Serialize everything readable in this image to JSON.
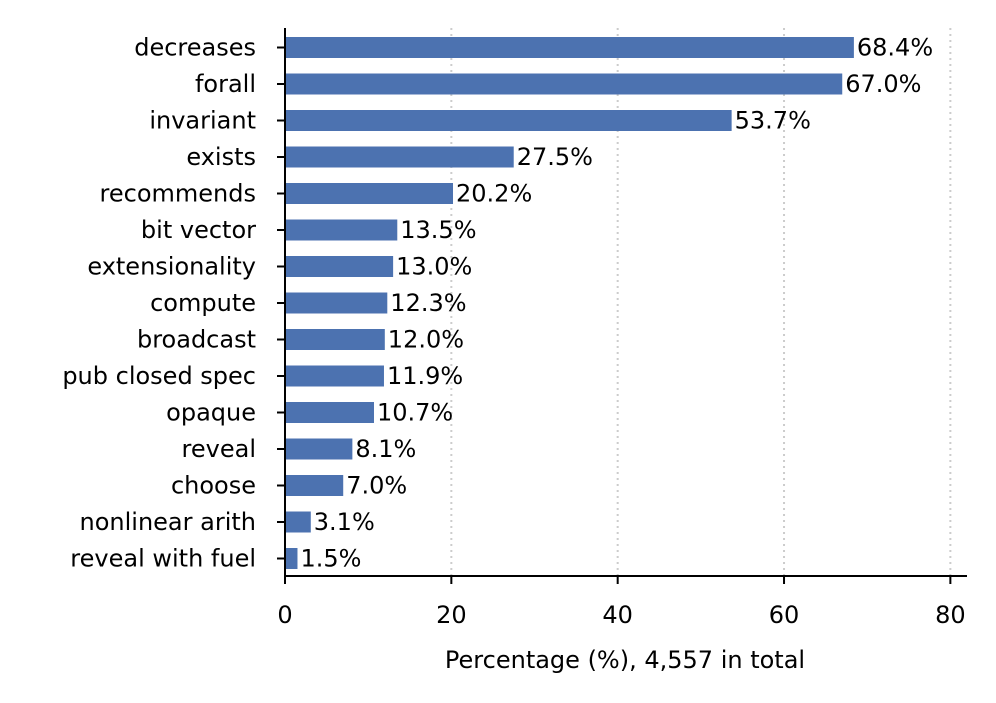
{
  "chart_data": {
    "type": "bar",
    "orientation": "horizontal",
    "title": "",
    "xlabel": "Percentage (%), 4,557 in total",
    "ylabel": "",
    "xlim": [
      0,
      82
    ],
    "xticks": [
      0,
      20,
      40,
      60,
      80
    ],
    "grid": "x-dotted",
    "categories": [
      "decreases",
      "forall",
      "invariant",
      "exists",
      "recommends",
      "bit vector",
      "extensionality",
      "compute",
      "broadcast",
      "pub closed spec",
      "opaque",
      "reveal",
      "choose",
      "nonlinear arith",
      "reveal with fuel"
    ],
    "values": [
      68.4,
      67.0,
      53.7,
      27.5,
      20.2,
      13.5,
      13.0,
      12.3,
      12.0,
      11.9,
      10.7,
      8.1,
      7.0,
      3.1,
      1.5
    ],
    "data_labels": [
      "68.4%",
      "67.0%",
      "53.7%",
      "27.5%",
      "20.2%",
      "13.5%",
      "13.0%",
      "12.3%",
      "12.0%",
      "11.9%",
      "10.7%",
      "8.1%",
      "7.0%",
      "3.1%",
      "1.5%"
    ],
    "bar_color": "#4c72b0"
  }
}
